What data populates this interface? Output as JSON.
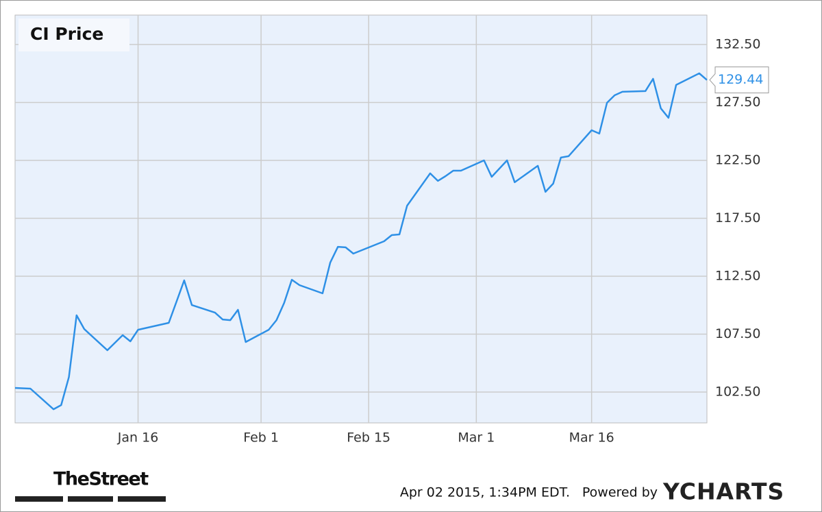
{
  "chart_data": {
    "type": "line",
    "title": "CI Price",
    "x": [
      "12-31",
      "01-02",
      "01-05",
      "01-06",
      "01-07",
      "01-08",
      "01-09",
      "01-12",
      "01-13",
      "01-14",
      "01-15",
      "01-16",
      "01-20",
      "01-21",
      "01-22",
      "01-23",
      "01-26",
      "01-27",
      "01-28",
      "01-29",
      "01-30",
      "02-02",
      "02-03",
      "02-04",
      "02-05",
      "02-06",
      "02-09",
      "02-10",
      "02-11",
      "02-12",
      "02-13",
      "02-17",
      "02-18",
      "02-19",
      "02-20",
      "02-23",
      "02-24",
      "02-25",
      "02-26",
      "02-27",
      "03-02",
      "03-03",
      "03-04",
      "03-05",
      "03-06",
      "03-09",
      "03-10",
      "03-11",
      "03-12",
      "03-13",
      "03-16",
      "03-17",
      "03-18",
      "03-19",
      "03-20",
      "03-23",
      "03-24",
      "03-25",
      "03-26",
      "03-27",
      "03-30",
      "03-31"
    ],
    "series": [
      {
        "name": "CI Price",
        "color": "#2e90e6",
        "values": [
          102.86,
          102.8,
          101.02,
          101.38,
          103.8,
          109.13,
          107.94,
          106.11,
          106.76,
          107.41,
          106.88,
          107.88,
          108.48,
          110.31,
          112.14,
          110.01,
          109.36,
          108.77,
          108.71,
          109.6,
          106.82,
          107.88,
          108.71,
          110.19,
          112.2,
          111.73,
          111.02,
          113.68,
          115.04,
          114.99,
          114.45,
          115.52,
          116.05,
          116.11,
          118.59,
          121.38,
          120.73,
          121.14,
          121.61,
          121.61,
          122.5,
          121.08,
          121.79,
          122.5,
          120.61,
          122.03,
          119.78,
          120.49,
          122.74,
          122.86,
          125.1,
          124.81,
          127.47,
          128.12,
          128.42,
          128.48,
          129.54,
          126.99,
          126.17,
          129.01,
          130.01,
          129.44
        ]
      }
    ],
    "xlim": [
      "12-31",
      "03-31"
    ],
    "xticks": [
      {
        "value": "01-16",
        "label": "Jan 16"
      },
      {
        "value": "02-01",
        "label": "Feb 1"
      },
      {
        "value": "02-15",
        "label": "Feb 15"
      },
      {
        "value": "03-01",
        "label": "Mar 1"
      },
      {
        "value": "03-16",
        "label": "Mar 16"
      }
    ],
    "ylim": [
      99.84,
      135.04
    ],
    "yticks": [
      {
        "value": 102.5,
        "label": "102.50"
      },
      {
        "value": 107.5,
        "label": "107.50"
      },
      {
        "value": 112.5,
        "label": "112.50"
      },
      {
        "value": 117.5,
        "label": "117.50"
      },
      {
        "value": 122.5,
        "label": "122.50"
      },
      {
        "value": 127.5,
        "label": "127.50"
      },
      {
        "value": 132.5,
        "label": "132.50"
      }
    ],
    "grid": true
  },
  "footer": {
    "source": "TheStreet",
    "timestamp": "Apr 02 2015, 1:34PM EDT.",
    "powered": "Powered by",
    "brand": "YCHARTS"
  }
}
